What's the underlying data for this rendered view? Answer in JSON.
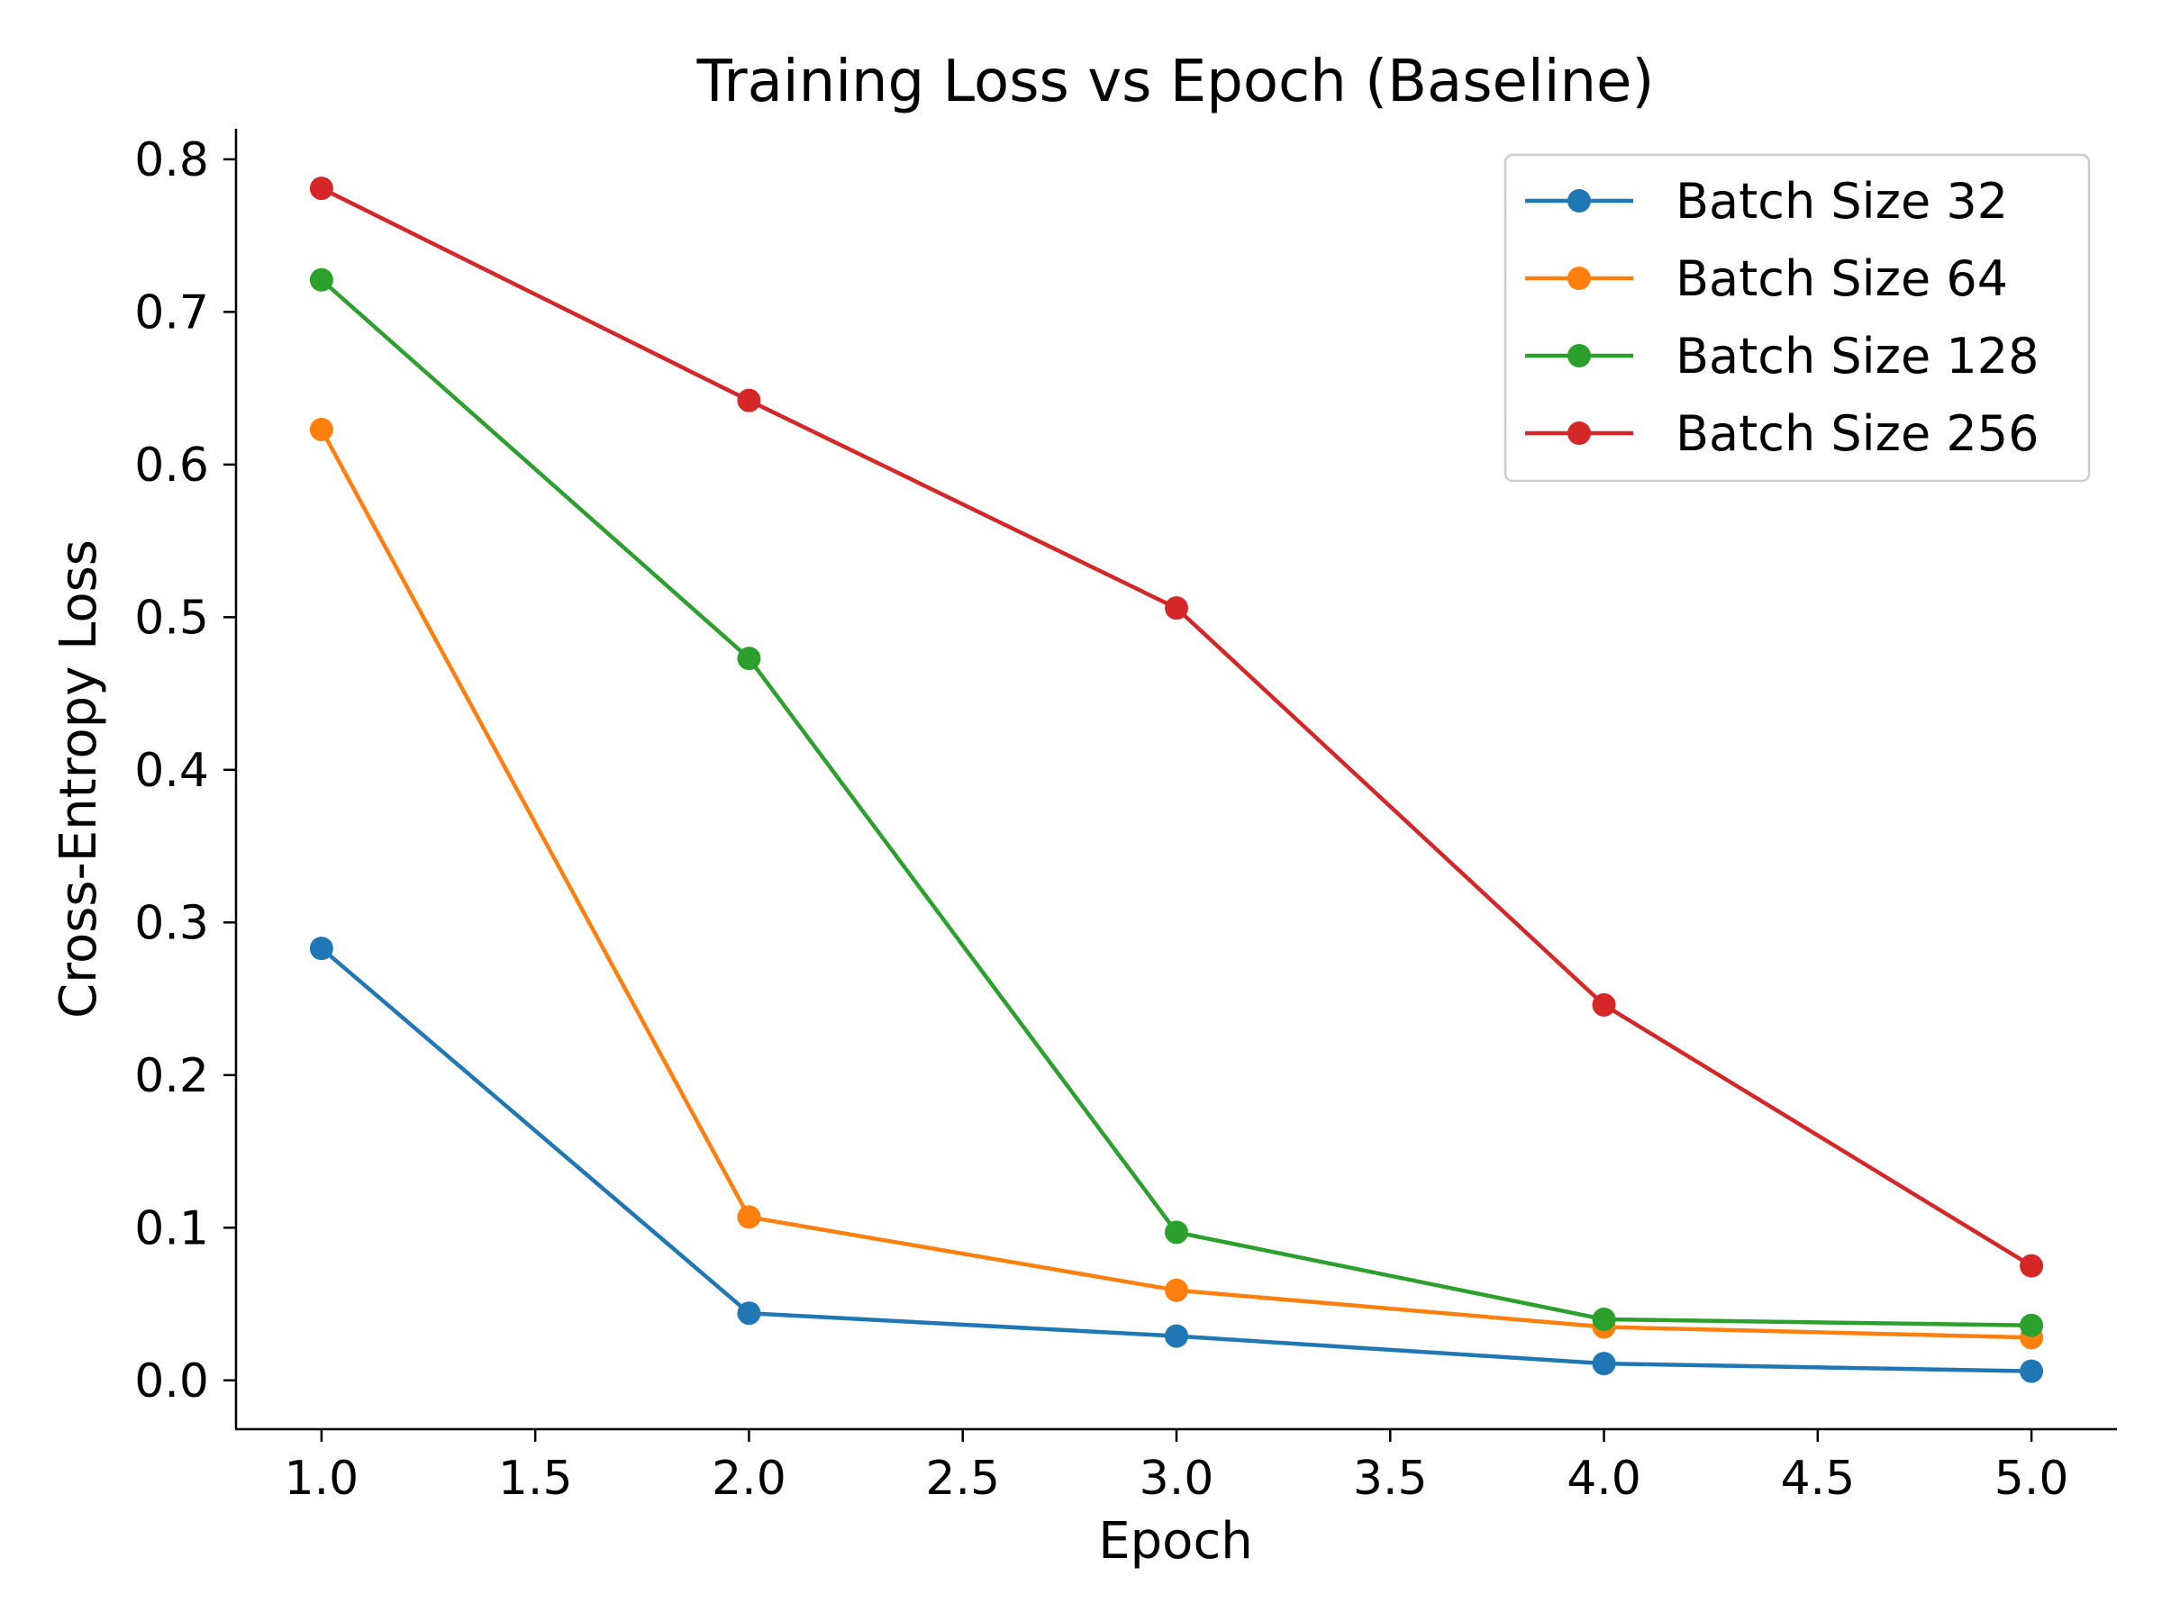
{
  "chart_data": {
    "type": "line",
    "title": "Training Loss vs Epoch (Baseline)",
    "xlabel": "Epoch",
    "ylabel": "Cross-Entropy Loss",
    "x": [
      1,
      2,
      3,
      4,
      5
    ],
    "xlim": [
      0.8,
      5.2
    ],
    "ylim": [
      -0.032,
      0.82
    ],
    "xticks": [
      1.0,
      1.5,
      2.0,
      2.5,
      3.0,
      3.5,
      4.0,
      4.5,
      5.0
    ],
    "xtick_labels": [
      "1.0",
      "1.5",
      "2.0",
      "2.5",
      "3.0",
      "3.5",
      "4.0",
      "4.5",
      "5.0"
    ],
    "yticks": [
      0.0,
      0.1,
      0.2,
      0.3,
      0.4,
      0.5,
      0.6,
      0.7,
      0.8
    ],
    "ytick_labels": [
      "0.0",
      "0.1",
      "0.2",
      "0.3",
      "0.4",
      "0.5",
      "0.6",
      "0.7",
      "0.8"
    ],
    "grid": false,
    "legend_position": "top-right",
    "series": [
      {
        "name": "Batch Size 32",
        "color": "#1f77b4",
        "values": [
          0.283,
          0.044,
          0.029,
          0.011,
          0.006
        ]
      },
      {
        "name": "Batch Size 64",
        "color": "#ff7f0e",
        "values": [
          0.623,
          0.107,
          0.059,
          0.035,
          0.028
        ]
      },
      {
        "name": "Batch Size 128",
        "color": "#2ca02c",
        "values": [
          0.721,
          0.473,
          0.097,
          0.04,
          0.036
        ]
      },
      {
        "name": "Batch Size 256",
        "color": "#d62728",
        "values": [
          0.781,
          0.642,
          0.506,
          0.246,
          0.075
        ]
      }
    ]
  }
}
